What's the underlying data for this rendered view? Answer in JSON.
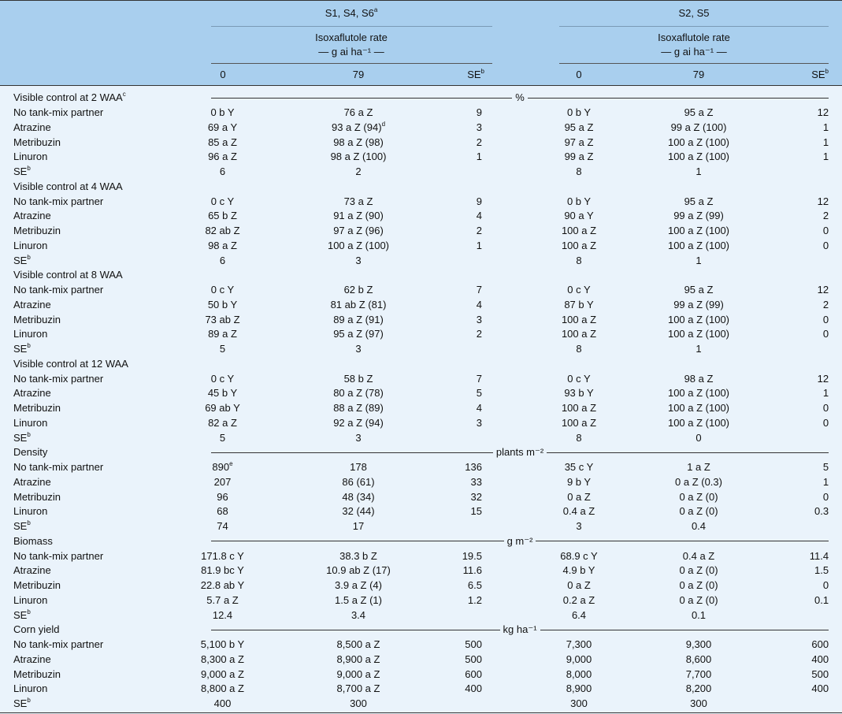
{
  "header": {
    "groups": [
      {
        "label": "S1, S4, S6",
        "sup": "a",
        "rate": "Isoxaflutole rate",
        "unit": "— g ai ha⁻¹ —"
      },
      {
        "label": "S2, S5",
        "rate": "Isoxaflutole rate",
        "unit": "— g ai ha⁻¹ —"
      }
    ],
    "columns": [
      {
        "text": "0"
      },
      {
        "text": "79"
      },
      {
        "text": "SE",
        "sup": "b"
      },
      {
        "text": "0"
      },
      {
        "text": "79"
      },
      {
        "text": "SE",
        "sup": "b"
      }
    ]
  },
  "sections": [
    {
      "title": "Visible control at 2 WAA",
      "sup": "c",
      "unit": "%",
      "rows": [
        {
          "label": "No tank-mix partner",
          "cells": [
            "0 b Y",
            "76 a Z",
            "9",
            "0 b Y",
            "95 a Z",
            "12"
          ]
        },
        {
          "label": "Atrazine",
          "cells": [
            "69 a Y",
            {
              "text": "93 a Z (94)",
              "sup": "d"
            },
            "3",
            "95 a Z",
            "99 a Z (100)",
            "1"
          ]
        },
        {
          "label": "Metribuzin",
          "cells": [
            "85 a Z",
            "98 a Z (98)",
            "2",
            "97 a Z",
            "100 a Z (100)",
            "1"
          ]
        },
        {
          "label": "Linuron",
          "cells": [
            "96 a Z",
            "98 a Z (100)",
            "1",
            "99 a Z",
            "100 a Z (100)",
            "1"
          ]
        }
      ],
      "se": {
        "label": "SE",
        "sup": "b",
        "cells": [
          "6",
          "2",
          "8",
          "1"
        ]
      }
    },
    {
      "title": "Visible control at 4 WAA",
      "unit": null,
      "rows": [
        {
          "label": "No tank-mix partner",
          "cells": [
            "0 c Y",
            "73 a Z",
            "9",
            "0 b Y",
            "95 a Z",
            "12"
          ]
        },
        {
          "label": "Atrazine",
          "cells": [
            "65 b Z",
            "91 a Z (90)",
            "4",
            "90 a Y",
            "99 a Z (99)",
            "2"
          ]
        },
        {
          "label": "Metribuzin",
          "cells": [
            "82 ab Z",
            "97 a Z (96)",
            "2",
            "100 a Z",
            "100 a Z (100)",
            "0"
          ]
        },
        {
          "label": "Linuron",
          "cells": [
            "98 a Z",
            "100 a Z (100)",
            "1",
            "100 a Z",
            "100 a Z (100)",
            "0"
          ]
        }
      ],
      "se": {
        "label": "SE",
        "sup": "b",
        "cells": [
          "6",
          "3",
          "8",
          "1"
        ]
      }
    },
    {
      "title": "Visible control at 8 WAA",
      "unit": null,
      "rows": [
        {
          "label": "No tank-mix partner",
          "cells": [
            "0 c Y",
            "62 b Z",
            "7",
            "0 c Y",
            "95 a Z",
            "12"
          ]
        },
        {
          "label": "Atrazine",
          "cells": [
            "50 b Y",
            "81 ab Z (81)",
            "4",
            "87 b Y",
            "99 a Z (99)",
            "2"
          ]
        },
        {
          "label": "Metribuzin",
          "cells": [
            "73 ab Z",
            "89 a Z (91)",
            "3",
            "100 a Z",
            "100 a Z (100)",
            "0"
          ]
        },
        {
          "label": "Linuron",
          "cells": [
            "89 a Z",
            "95 a Z (97)",
            "2",
            "100 a Z",
            "100 a Z (100)",
            "0"
          ]
        }
      ],
      "se": {
        "label": "SE",
        "sup": "b",
        "cells": [
          "5",
          "3",
          "8",
          "1"
        ]
      }
    },
    {
      "title": "Visible control at 12 WAA",
      "unit": null,
      "rows": [
        {
          "label": "No tank-mix partner",
          "cells": [
            "0 c Y",
            "58 b Z",
            "7",
            "0 c Y",
            "98 a Z",
            "12"
          ]
        },
        {
          "label": "Atrazine",
          "cells": [
            "45 b Y",
            "80 a Z (78)",
            "5",
            "93 b Y",
            "100 a Z (100)",
            "1"
          ]
        },
        {
          "label": "Metribuzin",
          "cells": [
            "69 ab Y",
            "88 a Z (89)",
            "4",
            "100 a Z",
            "100 a Z (100)",
            "0"
          ]
        },
        {
          "label": "Linuron",
          "cells": [
            "82 a Z",
            "92 a Z (94)",
            "3",
            "100 a Z",
            "100 a Z (100)",
            "0"
          ]
        }
      ],
      "se": {
        "label": "SE",
        "sup": "b",
        "cells": [
          "5",
          "3",
          "8",
          "0"
        ]
      }
    },
    {
      "title": "Density",
      "unit": "plants m⁻²",
      "rows": [
        {
          "label": "No tank-mix partner",
          "cells": [
            {
              "text": "890",
              "sup": "e"
            },
            "178",
            "136",
            "35 c Y",
            "1 a Z",
            "5"
          ]
        },
        {
          "label": "Atrazine",
          "cells": [
            "207",
            "86 (61)",
            "33",
            "9 b Y",
            "0 a Z (0.3)",
            "1"
          ]
        },
        {
          "label": "Metribuzin",
          "cells": [
            "96",
            "48 (34)",
            "32",
            "0 a Z",
            "0 a Z (0)",
            "0"
          ]
        },
        {
          "label": "Linuron",
          "cells": [
            "68",
            "32 (44)",
            "15",
            "0.4 a Z",
            "0 a Z (0)",
            "0.3"
          ]
        }
      ],
      "se": {
        "label": "SE",
        "sup": "b",
        "cells": [
          "74",
          "17",
          "3",
          "0.4"
        ]
      }
    },
    {
      "title": "Biomass",
      "unit": "g m⁻²",
      "rows": [
        {
          "label": "No tank-mix partner",
          "cells": [
            "171.8 c Y",
            "38.3 b Z",
            "19.5",
            "68.9 c Y",
            "0.4 a Z",
            "11.4"
          ]
        },
        {
          "label": "Atrazine",
          "cells": [
            "81.9 bc Y",
            "10.9 ab Z (17)",
            "11.6",
            "4.9 b Y",
            "0 a Z (0)",
            "1.5"
          ]
        },
        {
          "label": "Metribuzin",
          "cells": [
            "22.8 ab Y",
            "3.9 a Z (4)",
            "6.5",
            "0 a Z",
            "0 a Z (0)",
            "0"
          ]
        },
        {
          "label": "Linuron",
          "cells": [
            "5.7 a Z",
            "1.5 a Z (1)",
            "1.2",
            "0.2 a Z",
            "0 a Z (0)",
            "0.1"
          ]
        }
      ],
      "se": {
        "label": "SE",
        "sup": "b",
        "cells": [
          "12.4",
          "3.4",
          "6.4",
          "0.1"
        ]
      }
    },
    {
      "title": "Corn yield",
      "unit": "kg ha⁻¹",
      "rows": [
        {
          "label": "No tank-mix partner",
          "cells": [
            "5,100 b Y",
            "8,500 a Z",
            "500",
            "7,300",
            "9,300",
            "600"
          ]
        },
        {
          "label": "Atrazine",
          "cells": [
            "8,300 a Z",
            "8,900 a Z",
            "500",
            "9,000",
            "8,600",
            "400"
          ]
        },
        {
          "label": "Metribuzin",
          "cells": [
            "9,000 a Z",
            "9,000 a Z",
            "600",
            "8,000",
            "7,700",
            "500"
          ]
        },
        {
          "label": "Linuron",
          "cells": [
            "8,800 a Z",
            "8,700 a Z",
            "400",
            "8,900",
            "8,200",
            "400"
          ]
        }
      ],
      "se": {
        "label": "SE",
        "sup": "b",
        "cells": [
          "400",
          "300",
          "300",
          "300"
        ]
      }
    }
  ]
}
